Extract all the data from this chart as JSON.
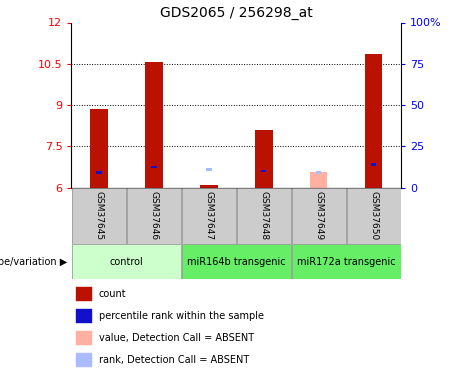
{
  "title": "GDS2065 / 256298_at",
  "samples": [
    "GSM37645",
    "GSM37646",
    "GSM37647",
    "GSM37648",
    "GSM37649",
    "GSM37650"
  ],
  "bar_values": [
    8.85,
    10.55,
    6.1,
    8.1,
    null,
    10.85
  ],
  "bar_absent_values": [
    null,
    null,
    null,
    null,
    6.55,
    null
  ],
  "percentile_values": [
    6.55,
    6.75,
    null,
    6.6,
    null,
    6.85
  ],
  "percentile_absent_values": [
    null,
    null,
    6.65,
    null,
    6.55,
    null
  ],
  "bar_color": "#bb1100",
  "bar_absent_color": "#ffb0a0",
  "percentile_color": "#1111cc",
  "percentile_absent_color": "#aabbff",
  "ylim_left": [
    6.0,
    12.0
  ],
  "ylim_right": [
    0,
    100
  ],
  "yticks_left": [
    6,
    7.5,
    9,
    10.5,
    12
  ],
  "yticks_right": [
    0,
    25,
    50,
    75,
    100
  ],
  "groups": [
    {
      "label": "control",
      "start": 0,
      "end": 1,
      "color": "#ccffcc"
    },
    {
      "label": "miR164b transgenic",
      "start": 2,
      "end": 3,
      "color": "#66ee66"
    },
    {
      "label": "miR172a transgenic",
      "start": 4,
      "end": 5,
      "color": "#66ee66"
    }
  ],
  "legend_items": [
    {
      "label": "count",
      "color": "#bb1100"
    },
    {
      "label": "percentile rank within the sample",
      "color": "#1111cc"
    },
    {
      "label": "value, Detection Call = ABSENT",
      "color": "#ffb0a0"
    },
    {
      "label": "rank, Detection Call = ABSENT",
      "color": "#aabbff"
    }
  ],
  "bar_width": 0.32,
  "percentile_size": 0.1,
  "sample_box_color": "#cccccc",
  "plot_bg": "#ffffff",
  "genotype_label": "genotype/variation"
}
